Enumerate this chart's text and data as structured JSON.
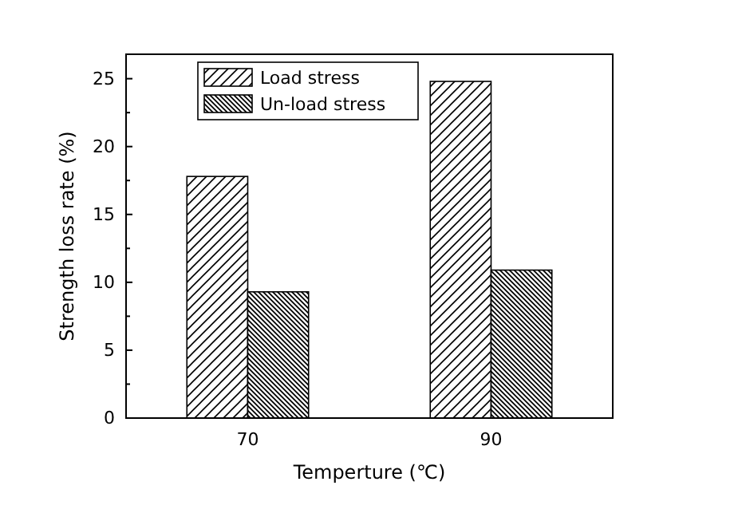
{
  "chart_data": {
    "type": "bar",
    "xlabel": "Temperture (℃)",
    "ylabel": "Strength loss rate (%)",
    "categories": [
      "70",
      "90"
    ],
    "series": [
      {
        "name": "Load stress",
        "color": "#000000",
        "values": [
          17.8,
          24.8
        ]
      },
      {
        "name": "Un-load stress",
        "color": "#000000",
        "values": [
          9.3,
          10.9
        ]
      }
    ],
    "ylim": [
      0,
      26.8
    ],
    "yticks": [
      0,
      {
        "value": 2.5,
        "label": null
      },
      5,
      {
        "value": 7.5,
        "label": null
      },
      10,
      {
        "value": 12.5,
        "label": null
      },
      15,
      {
        "value": 17.5,
        "label": null
      },
      20,
      {
        "value": 22.5,
        "label": null
      },
      25
    ],
    "legend": "top left",
    "grid": false
  }
}
